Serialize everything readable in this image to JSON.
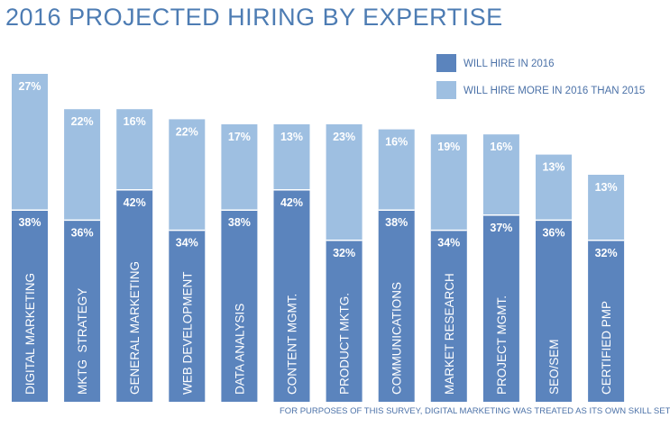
{
  "chart_data": {
    "type": "bar",
    "stacked": true,
    "title": "2016 PROJECTED HIRING BY EXPERTISE",
    "footnote": "FOR PURPOSES OF THIS SURVEY, DIGITAL MARKETING WAS TREATED AS ITS OWN SKILL SET",
    "categories": [
      "DIGITAL MARKETING",
      "MKTG  STRATEGY",
      "GENERAL MARKETING",
      "WEB DEVELOPMENT",
      "DATA ANALYSIS",
      "CONTENT MGMT.",
      "PRODUCT MKTG.",
      "COMMUNICATIONS",
      "MARKET RESEARCH",
      "PROJECT MGMT.",
      "SEO/SEM",
      "CERTIFIED PMP"
    ],
    "series": [
      {
        "name": "WILL HIRE IN 2016",
        "color": "#5b84bd",
        "values": [
          38,
          36,
          42,
          34,
          38,
          42,
          32,
          38,
          34,
          37,
          36,
          32
        ]
      },
      {
        "name": "WILL HIRE MORE IN 2016 THAN 2015",
        "color": "#9ebfe1",
        "values": [
          27,
          22,
          16,
          22,
          17,
          13,
          23,
          16,
          19,
          16,
          13,
          13
        ]
      }
    ],
    "value_suffix": "%",
    "legend_position": "top-right",
    "grid": false
  }
}
